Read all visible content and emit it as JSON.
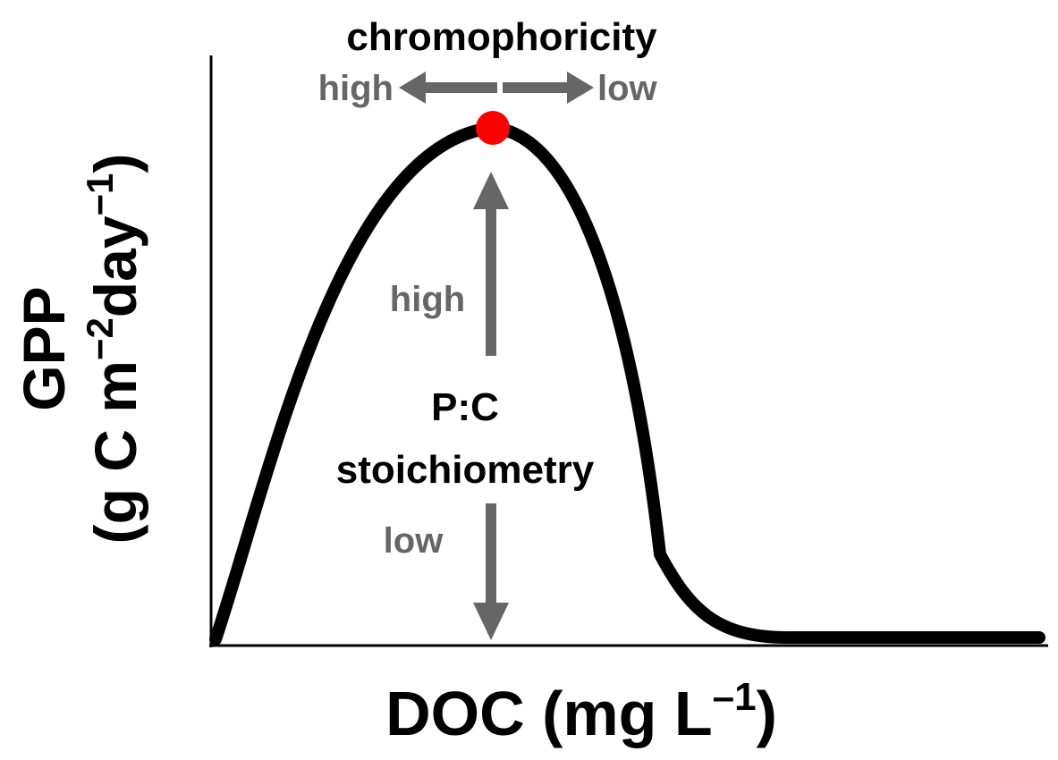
{
  "diagram": {
    "y_axis": {
      "line1": "GPP",
      "line2_prefix": "(g C m",
      "line2_sup1": "−2",
      "line2_mid": "day",
      "line2_sup2": "−1",
      "line2_suffix": ")"
    },
    "x_axis": {
      "prefix": "DOC (mg L",
      "sup": "–1",
      "suffix": ")"
    },
    "chromophoricity": {
      "title": "chromophoricity",
      "left_label": "high",
      "right_label": "low"
    },
    "stoichiometry": {
      "title_line1": "P:C",
      "title_line2": "stoichiometry",
      "up_label": "high",
      "down_label": "low"
    },
    "colors": {
      "curve": "#000000",
      "peak_marker": "#ff0000",
      "arrows": "#666666",
      "text_gray": "#666666",
      "text_black": "#000000"
    }
  }
}
